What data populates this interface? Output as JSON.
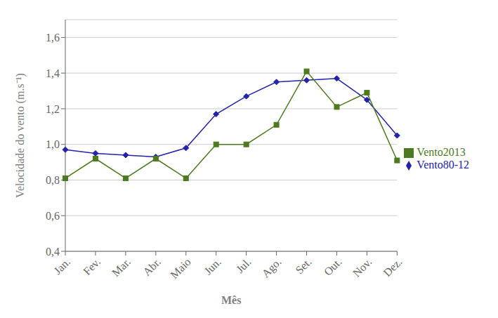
{
  "chart_data": {
    "type": "line",
    "xlabel": "Mês",
    "ylabel": "Velocidade do vento (m.s⁻¹)",
    "categories": [
      "Jan.",
      "Fev.",
      "Mar.",
      "Abr.",
      "Maio",
      "Jun.",
      "Jul.",
      "Ago.",
      "Set.",
      "Out.",
      "Nov.",
      "Dez."
    ],
    "series": [
      {
        "name": "Vento80-12",
        "color": "#2222AA",
        "marker": "diamond",
        "values": [
          0.97,
          0.95,
          0.94,
          0.93,
          0.98,
          1.17,
          1.27,
          1.35,
          1.36,
          1.37,
          1.25,
          1.05
        ]
      },
      {
        "name": "Vento2013",
        "color": "#4D7A1F",
        "marker": "square",
        "values": [
          0.81,
          0.92,
          0.81,
          0.92,
          0.81,
          1.0,
          1.0,
          1.11,
          1.41,
          1.21,
          1.29,
          0.91
        ]
      }
    ],
    "ylim": [
      0.4,
      1.7
    ],
    "yticks": [
      {
        "value": 0.4,
        "label": "0,4"
      },
      {
        "value": 0.6,
        "label": "0,6"
      },
      {
        "value": 0.8,
        "label": "0,8"
      },
      {
        "value": 1.0,
        "label": "1,0"
      },
      {
        "value": 1.2,
        "label": "1,2"
      },
      {
        "value": 1.4,
        "label": "1,4"
      },
      {
        "value": 1.6,
        "label": "1,6"
      }
    ],
    "grid": true,
    "legend": "right"
  }
}
